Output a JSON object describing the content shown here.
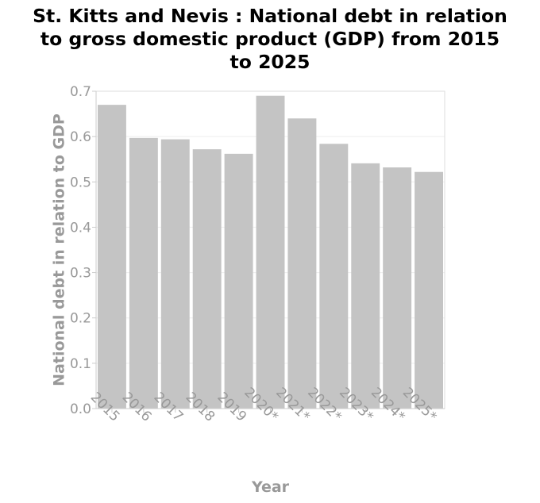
{
  "chart_data": {
    "type": "bar",
    "title_lines": [
      "St. Kitts and Nevis : National debt in relation",
      "to gross domestic product (GDP) from 2015",
      "to 2025"
    ],
    "xlabel": "Year",
    "ylabel": "National debt in relation to GDP",
    "categories": [
      "2015",
      "2016",
      "2017",
      "2018",
      "2019",
      "2020*",
      "2021*",
      "2022*",
      "2023*",
      "2024*",
      "2025*"
    ],
    "values": [
      0.67,
      0.597,
      0.594,
      0.572,
      0.562,
      0.69,
      0.64,
      0.584,
      0.541,
      0.532,
      0.522
    ],
    "ylim": [
      0,
      0.7
    ],
    "yticks": [
      "0.0",
      "0.1",
      "0.2",
      "0.3",
      "0.4",
      "0.5",
      "0.6",
      "0.7"
    ],
    "grid": true,
    "bar_color": "#c4c4c4",
    "label_color": "#999999"
  }
}
